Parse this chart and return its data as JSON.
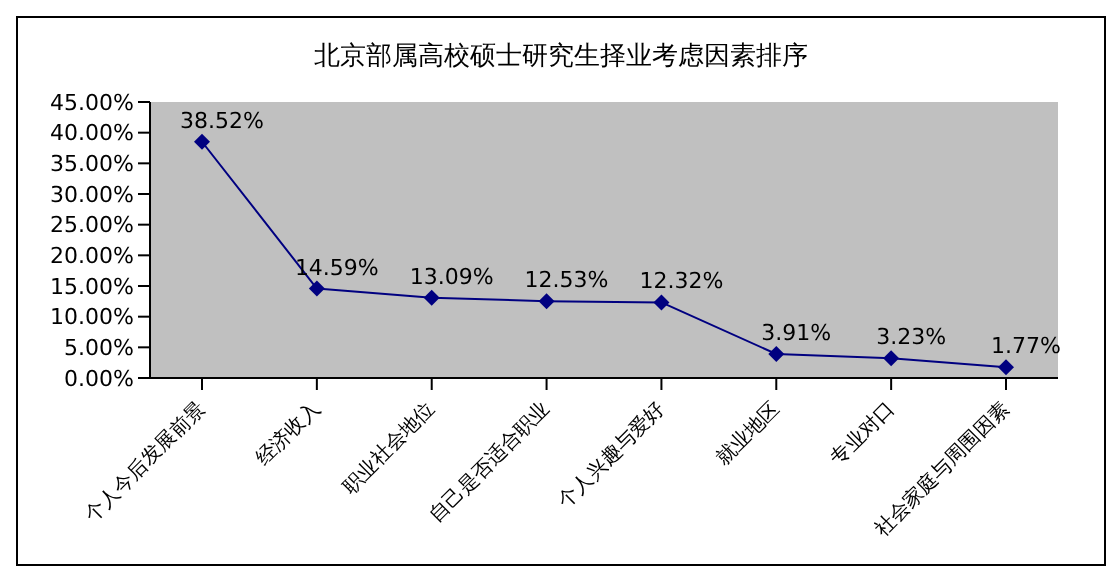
{
  "chart_data": {
    "type": "line",
    "title": "北京部属高校硕士研究生择业考虑因素排序",
    "categories": [
      "个人今后发展前景",
      "经济收入",
      "职业社会地位",
      "自己是否适合职业",
      "个人兴趣与爱好",
      "就业地区",
      "专业对口",
      "社会家庭与周围因素"
    ],
    "series": [
      {
        "color": "#000080",
        "values": [
          38.52,
          14.59,
          13.09,
          12.53,
          12.32,
          3.91,
          3.23,
          1.77
        ],
        "value_labels": [
          "38.52%",
          "14.59%",
          "13.09%",
          "12.53%",
          "12.32%",
          "3.91%",
          "3.23%",
          "1.77%"
        ]
      }
    ],
    "ylim": [
      0,
      45
    ],
    "yticks": [
      {
        "value": 0,
        "label": "0.00%"
      },
      {
        "value": 5,
        "label": "5.00%"
      },
      {
        "value": 10,
        "label": "10.00%"
      },
      {
        "value": 15,
        "label": "15.00%"
      },
      {
        "value": 20,
        "label": "20.00%"
      },
      {
        "value": 25,
        "label": "25.00%"
      },
      {
        "value": 30,
        "label": "30.00%"
      },
      {
        "value": 35,
        "label": "35.00%"
      },
      {
        "value": 40,
        "label": "40.00%"
      },
      {
        "value": 45,
        "label": "45.00%"
      }
    ],
    "grid": false,
    "legend": false,
    "marker": "diamond",
    "line_style": "solid"
  }
}
